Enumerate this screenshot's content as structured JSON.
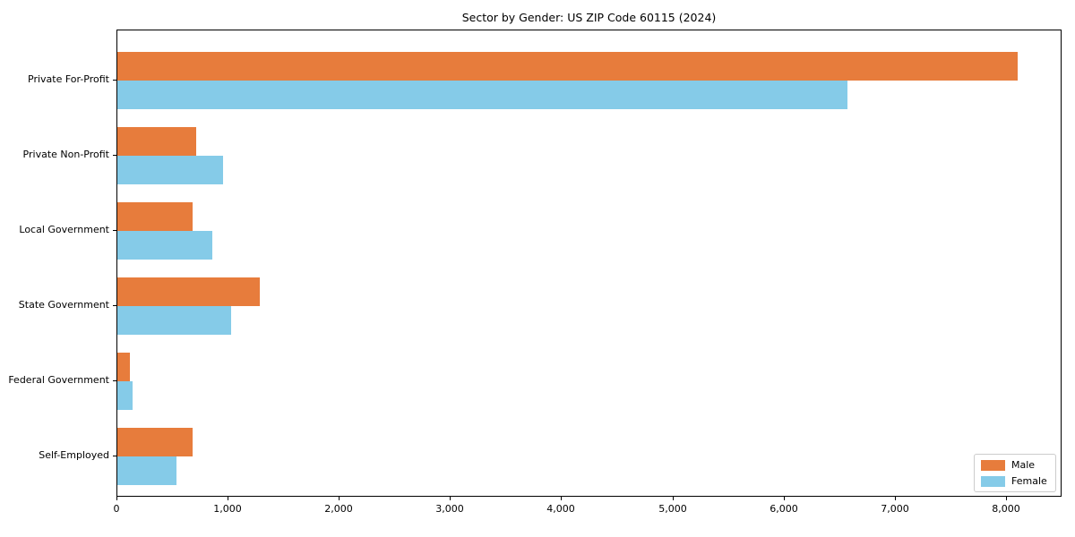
{
  "title": "Sector by Gender: US ZIP Code 60115 (2024)",
  "colors": {
    "male": "#e77c3c",
    "female": "#85cbe8",
    "axis": "#000000",
    "legend_border": "#cccccc",
    "background": "#ffffff"
  },
  "chart_data": {
    "type": "bar",
    "orientation": "horizontal",
    "title": "Sector by Gender: US ZIP Code 60115 (2024)",
    "categories": [
      "Private For-Profit",
      "Private Non-Profit",
      "Local Government",
      "State Government",
      "Federal Government",
      "Self-Employed"
    ],
    "series": [
      {
        "name": "Male",
        "color": "#e77c3c",
        "values": [
          8100,
          710,
          680,
          1280,
          110,
          680
        ]
      },
      {
        "name": "Female",
        "color": "#85cbe8",
        "values": [
          6570,
          950,
          850,
          1020,
          140,
          530
        ]
      }
    ],
    "xlabel": "",
    "ylabel": "",
    "xlim": [
      0,
      8500
    ],
    "x_ticks": [
      0,
      1000,
      2000,
      3000,
      4000,
      5000,
      6000,
      7000,
      8000
    ],
    "x_tick_labels": [
      "0",
      "1,000",
      "2,000",
      "3,000",
      "4,000",
      "5,000",
      "6,000",
      "7,000",
      "8,000"
    ],
    "legend_position": "lower right",
    "grid": false
  }
}
